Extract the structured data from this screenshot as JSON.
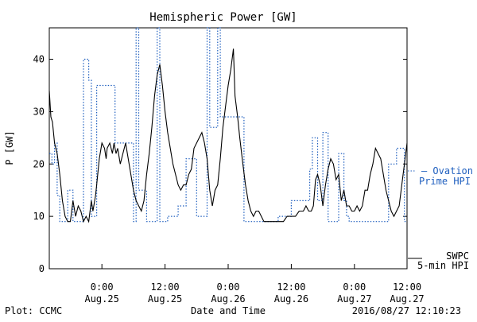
{
  "chart_data": {
    "type": "line",
    "title": "Hemispheric Power [GW]",
    "ylabel": "P [GW]",
    "xlabel": "Date and Time",
    "ylim": [
      0,
      46
    ],
    "xlim": [
      0,
      68
    ],
    "yticks": [
      0,
      10,
      20,
      30,
      40
    ],
    "xticks": [
      {
        "x": 10,
        "line1": "0:00",
        "line2": "Aug.25"
      },
      {
        "x": 22,
        "line1": "12:00",
        "line2": "Aug.25"
      },
      {
        "x": 34,
        "line1": "0:00",
        "line2": "Aug.26"
      },
      {
        "x": 46,
        "line1": "12:00",
        "line2": "Aug.26"
      },
      {
        "x": 58,
        "line1": "0:00",
        "line2": "Aug.27"
      },
      {
        "x": 70,
        "line1": "12:00",
        "line2": "Aug.27"
      }
    ],
    "series": [
      {
        "name": "SWPC 5-min HPI",
        "style": "solid",
        "color": "#000000",
        "points": [
          [
            0,
            34
          ],
          [
            0.3,
            29
          ],
          [
            0.6,
            28
          ],
          [
            1,
            24
          ],
          [
            1.5,
            22
          ],
          [
            2,
            18
          ],
          [
            2.5,
            13
          ],
          [
            3,
            10
          ],
          [
            3.5,
            9
          ],
          [
            4,
            9
          ],
          [
            4.5,
            13
          ],
          [
            5,
            10
          ],
          [
            5.5,
            12
          ],
          [
            6,
            11
          ],
          [
            6.5,
            9
          ],
          [
            7,
            10
          ],
          [
            7.5,
            9
          ],
          [
            8,
            13
          ],
          [
            8.3,
            11
          ],
          [
            8.8,
            14
          ],
          [
            9,
            16
          ],
          [
            9.5,
            21
          ],
          [
            10,
            24
          ],
          [
            10.5,
            23
          ],
          [
            10.8,
            21
          ],
          [
            11,
            23
          ],
          [
            11.5,
            24
          ],
          [
            12,
            22
          ],
          [
            12.3,
            24
          ],
          [
            12.7,
            22
          ],
          [
            13,
            23
          ],
          [
            13.5,
            20
          ],
          [
            14,
            22
          ],
          [
            14.5,
            24
          ],
          [
            15,
            21
          ],
          [
            15.5,
            18
          ],
          [
            16,
            15
          ],
          [
            16.5,
            13
          ],
          [
            17,
            12
          ],
          [
            17.5,
            11
          ],
          [
            18,
            13
          ],
          [
            18.5,
            18
          ],
          [
            19,
            22
          ],
          [
            19.5,
            27
          ],
          [
            20,
            33
          ],
          [
            20.5,
            37
          ],
          [
            21,
            39
          ],
          [
            21.5,
            35
          ],
          [
            22,
            30
          ],
          [
            22.5,
            26
          ],
          [
            23,
            23
          ],
          [
            23.5,
            20
          ],
          [
            24,
            18
          ],
          [
            24.5,
            16
          ],
          [
            25,
            15
          ],
          [
            25.5,
            16
          ],
          [
            26,
            16
          ],
          [
            26.5,
            18
          ],
          [
            27,
            19
          ],
          [
            27.5,
            23
          ],
          [
            28,
            24
          ],
          [
            28.5,
            25
          ],
          [
            29,
            26
          ],
          [
            29.5,
            24
          ],
          [
            30,
            21
          ],
          [
            30.5,
            15
          ],
          [
            31,
            12
          ],
          [
            31.5,
            15
          ],
          [
            32,
            16
          ],
          [
            32.5,
            21
          ],
          [
            33,
            27
          ],
          [
            33.5,
            31
          ],
          [
            34,
            35
          ],
          [
            34.5,
            38
          ],
          [
            35,
            42
          ],
          [
            35.3,
            33
          ],
          [
            35.8,
            29
          ],
          [
            36.2,
            25
          ],
          [
            36.8,
            20
          ],
          [
            37.3,
            16
          ],
          [
            37.8,
            13
          ],
          [
            38.3,
            11
          ],
          [
            38.8,
            10
          ],
          [
            39.3,
            11
          ],
          [
            39.8,
            11
          ],
          [
            40.3,
            10
          ],
          [
            40.8,
            9
          ],
          [
            41.5,
            9
          ],
          [
            42.5,
            9
          ],
          [
            43.5,
            9
          ],
          [
            44.5,
            9
          ],
          [
            45.2,
            10
          ],
          [
            46,
            10
          ],
          [
            46.8,
            10
          ],
          [
            47.5,
            11
          ],
          [
            48.3,
            11
          ],
          [
            48.8,
            12
          ],
          [
            49.3,
            11
          ],
          [
            49.8,
            11
          ],
          [
            50.2,
            12
          ],
          [
            50.6,
            17
          ],
          [
            51,
            18
          ],
          [
            51.5,
            16
          ],
          [
            52,
            12
          ],
          [
            52.5,
            16
          ],
          [
            53,
            19
          ],
          [
            53.5,
            21
          ],
          [
            54,
            20
          ],
          [
            54.5,
            17
          ],
          [
            55,
            18
          ],
          [
            55.5,
            13
          ],
          [
            56,
            15
          ],
          [
            56.5,
            12
          ],
          [
            57,
            12
          ],
          [
            57.5,
            11
          ],
          [
            58,
            11
          ],
          [
            58.5,
            12
          ],
          [
            59,
            11
          ],
          [
            59.5,
            12
          ],
          [
            60,
            15
          ],
          [
            60.5,
            15
          ],
          [
            61,
            18
          ],
          [
            61.5,
            20
          ],
          [
            62,
            23
          ],
          [
            62.5,
            22
          ],
          [
            63,
            21
          ],
          [
            63.5,
            18
          ],
          [
            64,
            15
          ],
          [
            64.5,
            13
          ],
          [
            65,
            11
          ],
          [
            65.5,
            10
          ],
          [
            66,
            11
          ],
          [
            66.5,
            12
          ],
          [
            67,
            16
          ],
          [
            67.5,
            20
          ],
          [
            68,
            24
          ]
        ]
      },
      {
        "name": "Ovation Prime HPI",
        "style": "dotted",
        "color": "#1f5fbf",
        "points": [
          [
            0,
            22
          ],
          [
            0.5,
            22
          ],
          [
            0.5,
            20
          ],
          [
            1,
            20
          ],
          [
            1,
            24
          ],
          [
            1.5,
            24
          ],
          [
            1.5,
            14
          ],
          [
            2,
            14
          ],
          [
            2,
            9
          ],
          [
            3.5,
            9
          ],
          [
            3.5,
            15
          ],
          [
            4.5,
            15
          ],
          [
            4.5,
            9
          ],
          [
            6.5,
            9
          ],
          [
            6.5,
            40
          ],
          [
            7.5,
            40
          ],
          [
            7.5,
            36
          ],
          [
            8,
            36
          ],
          [
            8,
            10
          ],
          [
            9,
            10
          ],
          [
            9,
            35
          ],
          [
            12.5,
            35
          ],
          [
            12.5,
            24
          ],
          [
            16,
            24
          ],
          [
            16,
            9
          ],
          [
            16.5,
            9
          ],
          [
            16.5,
            46
          ],
          [
            17,
            46
          ],
          [
            17,
            15
          ],
          [
            18.5,
            15
          ],
          [
            18.5,
            9
          ],
          [
            20.5,
            9
          ],
          [
            20.5,
            46
          ],
          [
            21,
            46
          ],
          [
            21,
            9
          ],
          [
            22.5,
            9
          ],
          [
            22.5,
            10
          ],
          [
            24.5,
            10
          ],
          [
            24.5,
            12
          ],
          [
            26,
            12
          ],
          [
            26,
            21
          ],
          [
            28,
            21
          ],
          [
            28,
            10
          ],
          [
            30,
            10
          ],
          [
            30,
            46
          ],
          [
            30.5,
            46
          ],
          [
            30.5,
            27
          ],
          [
            32,
            27
          ],
          [
            32,
            46
          ],
          [
            32.5,
            46
          ],
          [
            32.5,
            29
          ],
          [
            37,
            29
          ],
          [
            37,
            9
          ],
          [
            43.5,
            9
          ],
          [
            43.5,
            10
          ],
          [
            46,
            10
          ],
          [
            46,
            13
          ],
          [
            49.5,
            13
          ],
          [
            49.5,
            19
          ],
          [
            50,
            19
          ],
          [
            50,
            25
          ],
          [
            51,
            25
          ],
          [
            51,
            13
          ],
          [
            52,
            13
          ],
          [
            52,
            26
          ],
          [
            53,
            26
          ],
          [
            53,
            9
          ],
          [
            55,
            9
          ],
          [
            55,
            22
          ],
          [
            56,
            22
          ],
          [
            56,
            13
          ],
          [
            56.5,
            13
          ],
          [
            56.5,
            10
          ],
          [
            57,
            10
          ],
          [
            57,
            9
          ],
          [
            64.5,
            9
          ],
          [
            64.5,
            20
          ],
          [
            66,
            20
          ],
          [
            66,
            23
          ],
          [
            67.5,
            23
          ],
          [
            67.5,
            9
          ],
          [
            68,
            9
          ]
        ]
      }
    ],
    "legend": [
      {
        "label1": "– Ovation",
        "label2": "Prime HPI",
        "color": "#1f5fbf"
      },
      {
        "label1": "SWPC",
        "label2": "5-min HPI",
        "color": "#000000"
      }
    ],
    "grid": false,
    "legend_position": "right"
  },
  "footer": {
    "left": "Plot: CCMC",
    "center": "Date and Time",
    "right": "2016/08/27 12:10:23"
  }
}
